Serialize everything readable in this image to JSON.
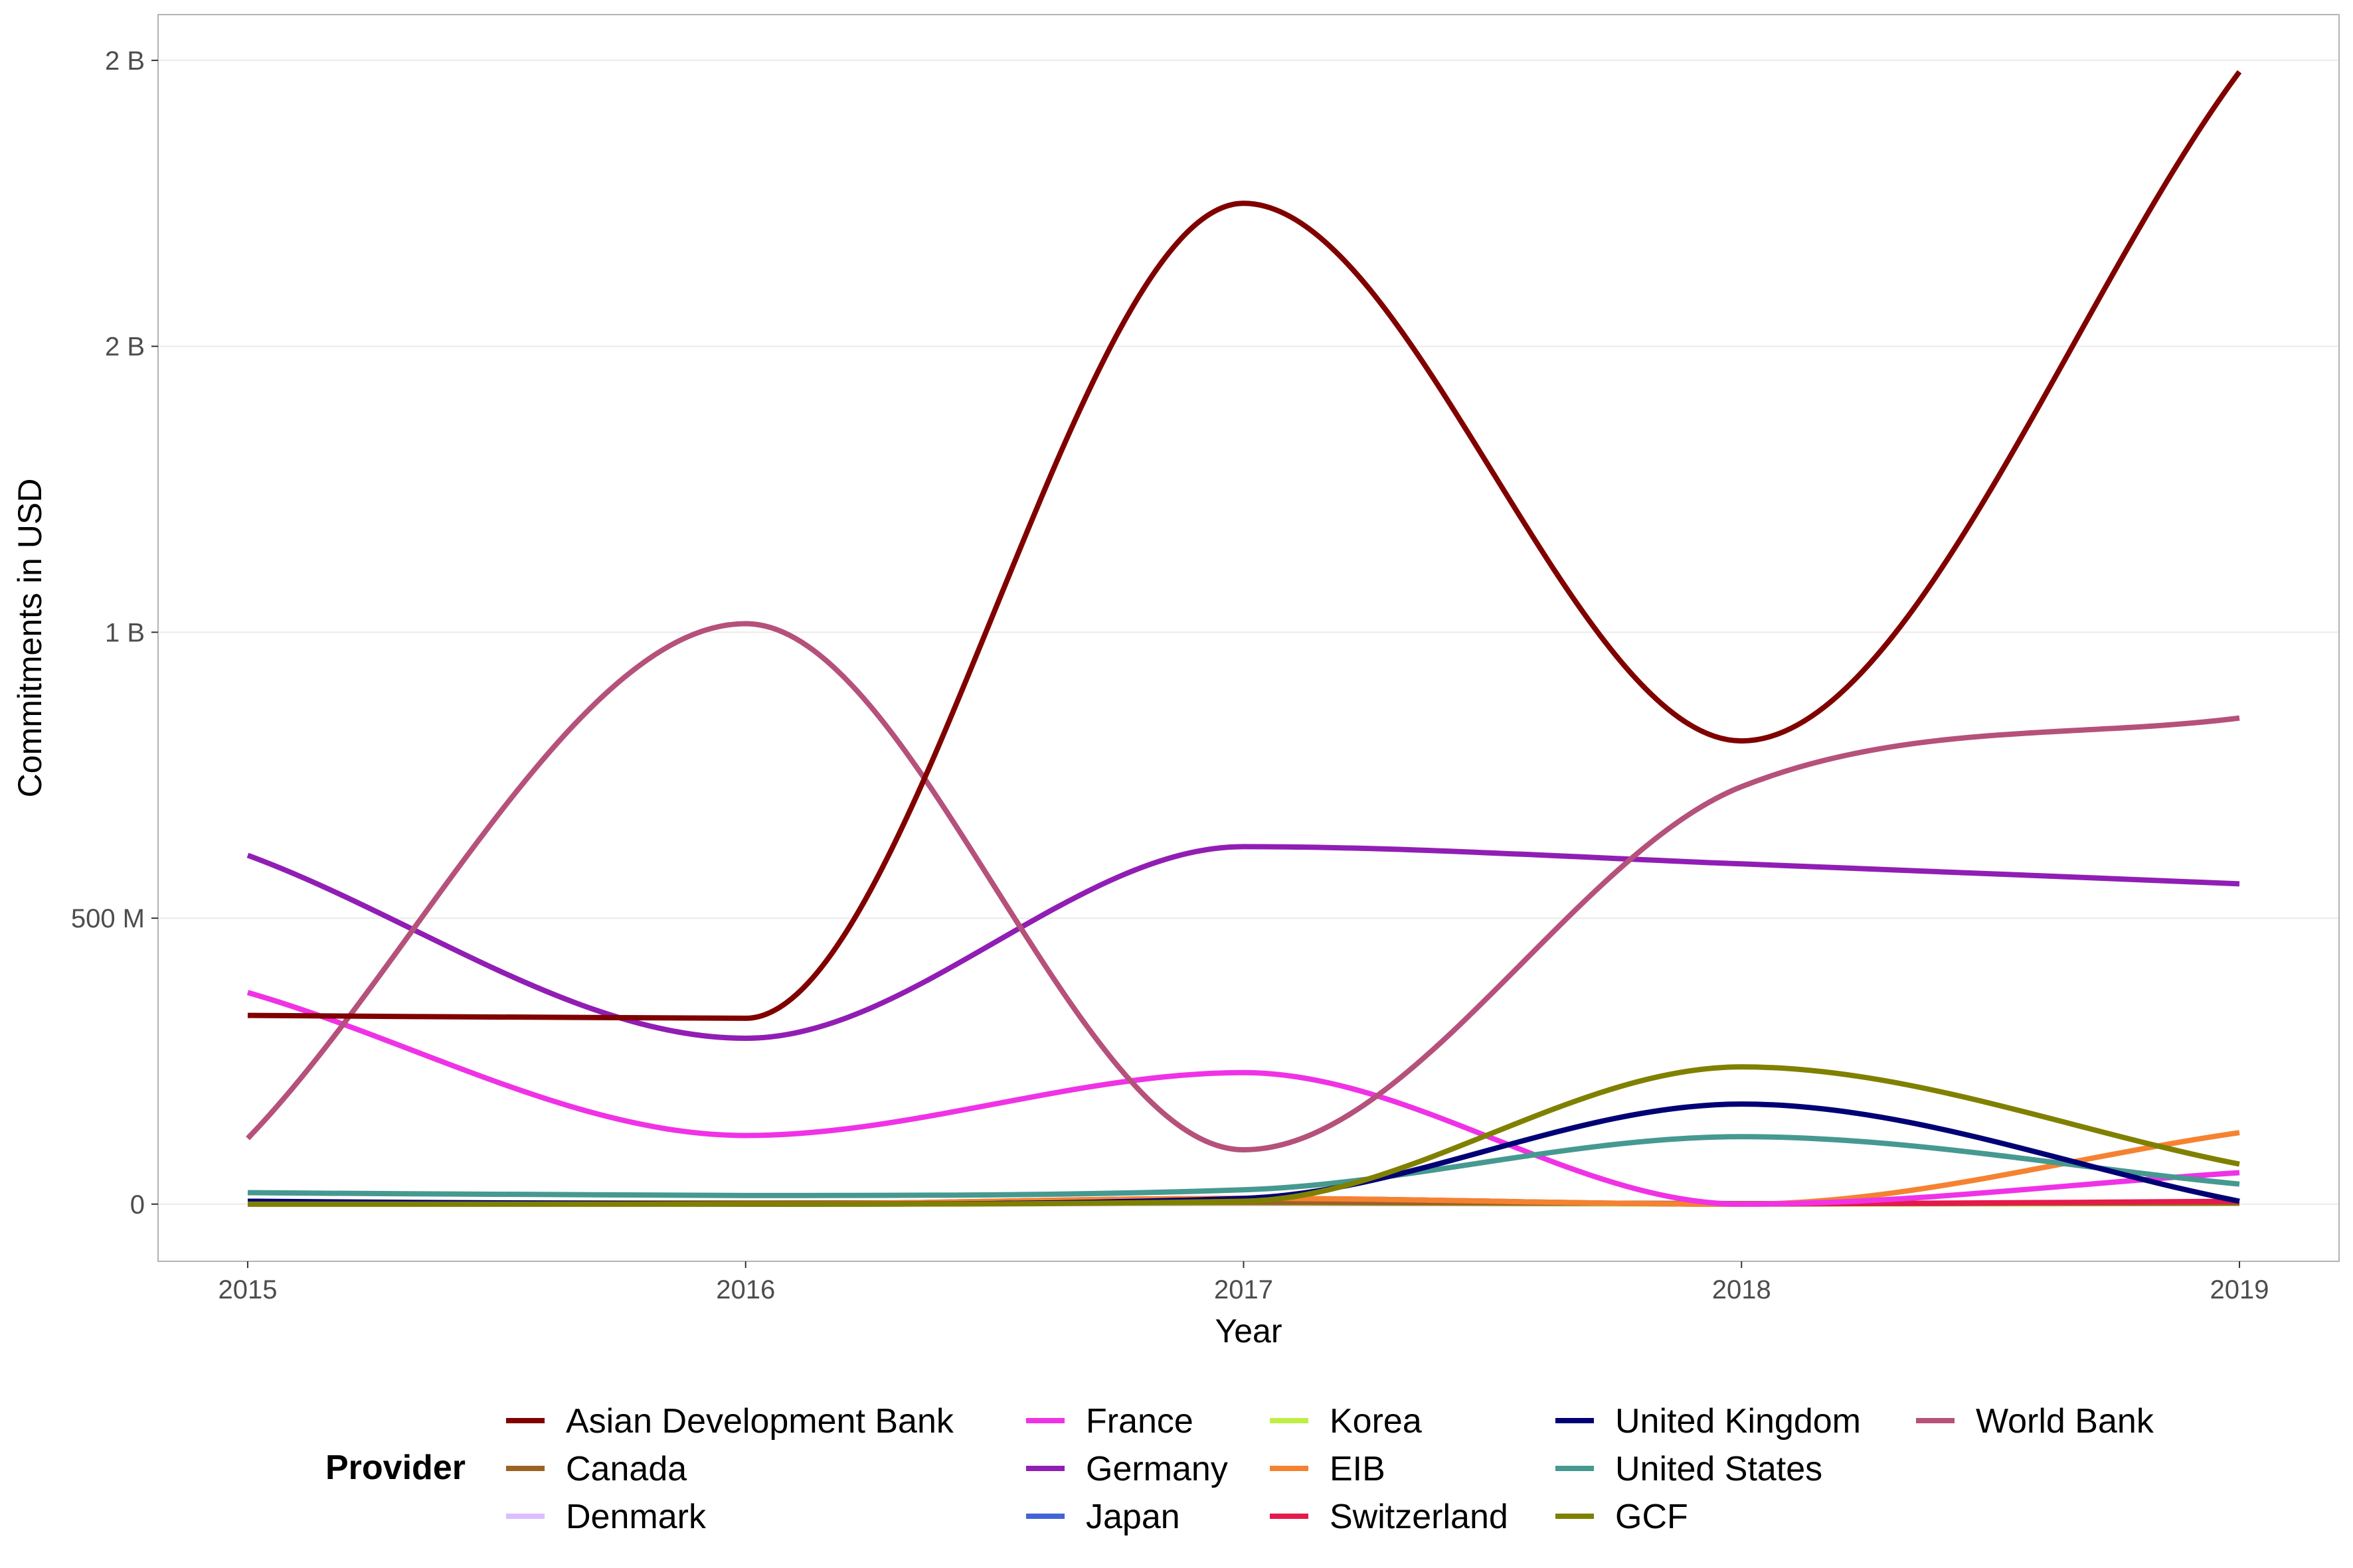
{
  "chart_data": {
    "type": "line",
    "title": "",
    "xlabel": "Year",
    "ylabel": "Commitments in USD",
    "x": [
      2015,
      2016,
      2017,
      2018,
      2019
    ],
    "x_ticks": [
      "2015",
      "2016",
      "2017",
      "2018",
      "2019"
    ],
    "y_ticks": [
      {
        "value": 0,
        "label": "0"
      },
      {
        "value": 500000000,
        "label": "500 M"
      },
      {
        "value": 1000000000,
        "label": "1 B"
      },
      {
        "value": 1500000000,
        "label": "2 B"
      },
      {
        "value": 2000000000,
        "label": "2 B"
      }
    ],
    "xlim": [
      2014.82,
      2019.2
    ],
    "ylim": [
      -100000000,
      2080000000
    ],
    "grid": "horizontal major",
    "legend_title": "Provider",
    "legend_position": "bottom",
    "smoothed": true,
    "series": [
      {
        "name": "Asian Development Bank",
        "color": "#800000",
        "values": [
          330000000,
          325000000,
          1750000000,
          810000000,
          1980000000
        ]
      },
      {
        "name": "Canada",
        "color": "#9A6324",
        "values": [
          2000000,
          2000000,
          3000000,
          1000000,
          2000000
        ]
      },
      {
        "name": "Denmark",
        "color": "#dcbeff",
        "values": [
          0,
          0,
          1000000,
          0,
          1000000
        ]
      },
      {
        "name": "France",
        "color": "#f032e6",
        "values": [
          370000000,
          120000000,
          230000000,
          0,
          55000000
        ]
      },
      {
        "name": "Germany",
        "color": "#911eb4",
        "values": [
          610000000,
          290000000,
          625000000,
          595000000,
          560000000
        ]
      },
      {
        "name": "Japan",
        "color": "#4363d8",
        "values": [
          0,
          0,
          3000000,
          1000000,
          2000000
        ]
      },
      {
        "name": "Korea",
        "color": "#bfef45",
        "values": [
          0,
          0,
          2000000,
          0,
          1000000
        ]
      },
      {
        "name": "EIB",
        "color": "#f58231",
        "values": [
          0,
          0,
          10000000,
          0,
          125000000
        ]
      },
      {
        "name": "Switzerland",
        "color": "#e6194B",
        "values": [
          0,
          0,
          10000000,
          0,
          5000000
        ]
      },
      {
        "name": "United Kingdom",
        "color": "#000075",
        "values": [
          5000000,
          0,
          10000000,
          175000000,
          5000000
        ]
      },
      {
        "name": "United States",
        "color": "#469990",
        "values": [
          20000000,
          15000000,
          25000000,
          118000000,
          35000000
        ]
      },
      {
        "name": "GCF",
        "color": "#808000",
        "values": [
          0,
          0,
          5000000,
          240000000,
          70000000
        ]
      },
      {
        "name": "World Bank",
        "color": "#b5517a",
        "values": [
          115000000,
          1015000000,
          95000000,
          730000000,
          850000000
        ]
      }
    ]
  }
}
